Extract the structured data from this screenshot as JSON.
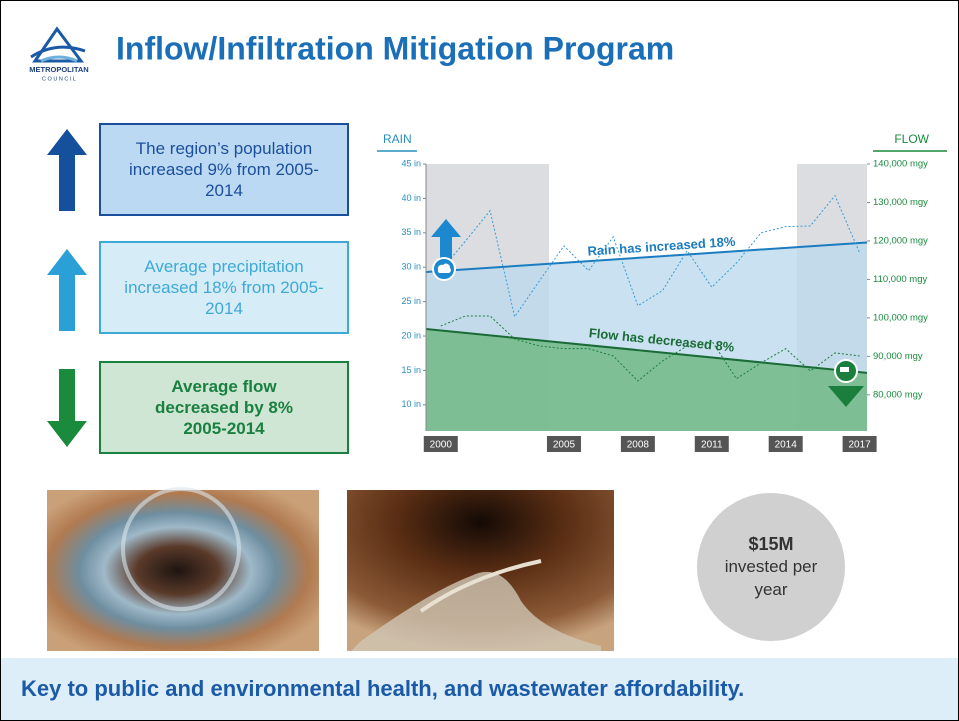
{
  "header": {
    "title": "Inflow/Infiltration Mitigation Program",
    "logo_name": "METROPOLITAN",
    "logo_sub": "C O U N C I L"
  },
  "callouts": [
    {
      "text": "The region’s population increased 9% from 2005-2014"
    },
    {
      "text": "Average precipitation increased 18% from 2005-2014"
    },
    {
      "text": "Average flow decreased by 8% 2005-2014"
    }
  ],
  "chart_data": {
    "type": "line",
    "y_label": "RAIN",
    "y2_label": "FLOW",
    "x": [
      2000,
      2001,
      2002,
      2003,
      2004,
      2005,
      2006,
      2007,
      2008,
      2009,
      2010,
      2011,
      2012,
      2013,
      2014,
      2015,
      2016,
      2017
    ],
    "series": [
      {
        "color": "#3a9bd5",
        "values": [
          29.5,
          33.8,
          38.2,
          22.8,
          28.0,
          33.1,
          29.5,
          34.4,
          24.4,
          26.6,
          32.4,
          27.1,
          30.6,
          35.0,
          35.9,
          36.0,
          40.4,
          32.1
        ]
      },
      {
        "color": "#1b7f3b",
        "axis": "y2",
        "values": [
          97900,
          100500,
          100500,
          94500,
          92700,
          92000,
          92000,
          90100,
          83600,
          88800,
          92700,
          94000,
          84200,
          88300,
          92000,
          86200,
          90900,
          90100
        ]
      }
    ],
    "trends": [
      {
        "name": "Rain has increased 18%",
        "color": "#1b7cc0",
        "fill": "#bcd9ec",
        "x": [
          1999.4,
          2017.3
        ],
        "values": [
          29.3,
          33.6
        ]
      },
      {
        "name": "Flow has decreased 8%",
        "color": "#1a6b35",
        "fill": "#6bb77f",
        "axis": "y2",
        "x": [
          1999.4,
          2017.3
        ],
        "values": [
          97100,
          85700
        ]
      }
    ],
    "xlim": [
      1999.4,
      2017.3
    ],
    "xticks": [
      2000,
      2005,
      2008,
      2011,
      2014,
      2017
    ],
    "ylim": [
      6.2,
      45
    ],
    "yticks": [
      {
        "value": 10,
        "label": "10 in"
      },
      {
        "value": 15,
        "label": "15 in"
      },
      {
        "value": 20,
        "label": "20 in"
      },
      {
        "value": 25,
        "label": "25 in"
      },
      {
        "value": 30,
        "label": "30 in"
      },
      {
        "value": 35,
        "label": "35 in"
      },
      {
        "value": 40,
        "label": "40 in"
      },
      {
        "value": 45,
        "label": "45 in"
      }
    ],
    "y2lim": [
      70600,
      140000
    ],
    "y2ticks": [
      {
        "value": 80000,
        "label": "80,000 mgy"
      },
      {
        "value": 90000,
        "label": "90,000 mgy"
      },
      {
        "value": 100000,
        "label": "100,000 mgy"
      },
      {
        "value": 110000,
        "label": "110,000 mgy"
      },
      {
        "value": 120000,
        "label": "120,000 mgy"
      },
      {
        "value": 130000,
        "label": "130,000 mgy"
      },
      {
        "value": 140000,
        "label": "140,000 mgy"
      }
    ]
  },
  "badge": {
    "amount": "$15M",
    "text": "invested per year"
  },
  "footer": {
    "text": "Key to public and environmental health, and wastewater affordability."
  }
}
